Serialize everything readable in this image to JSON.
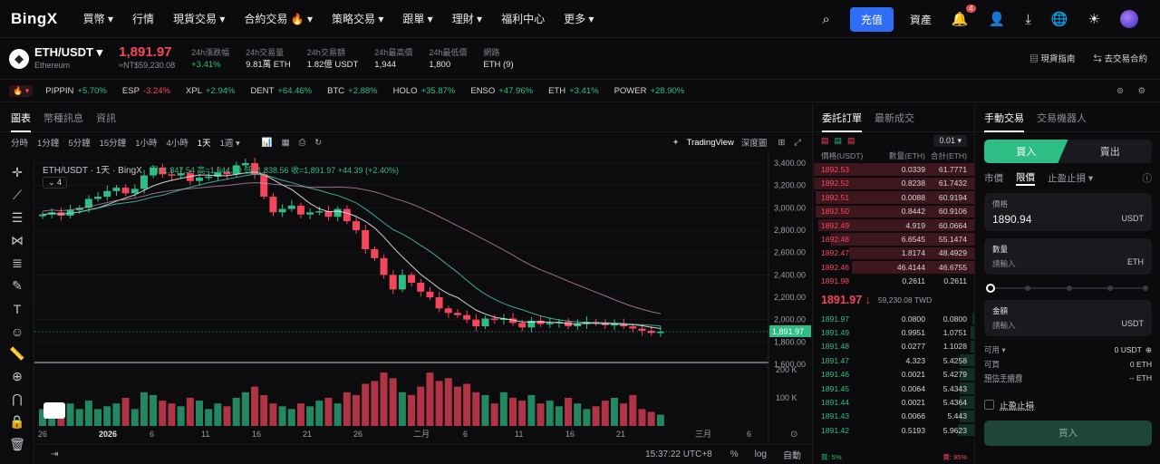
{
  "nav": {
    "logo": "BingX",
    "items": [
      "買幣 ▾",
      "行情",
      "現貨交易 ▾",
      "合約交易 🔥 ▾",
      "策略交易 ▾",
      "跟單 ▾",
      "理財 ▾",
      "福利中心",
      "更多 ▾"
    ],
    "deposit": "充值",
    "assets": "資產",
    "notif_count": "4"
  },
  "ticker": {
    "pair": "ETH/USDT ▾",
    "name": "Ethereum",
    "price": "1,891.97",
    "price_sub": "≈NT$59,230.08",
    "stats": [
      {
        "k": "24h漲跌幅",
        "v": "+3.41%",
        "up": true
      },
      {
        "k": "24h交易量",
        "v": "9.81萬 ETH"
      },
      {
        "k": "24h交易額",
        "v": "1.82億 USDT"
      },
      {
        "k": "24h最高價",
        "v": "1,944"
      },
      {
        "k": "24h最低價",
        "v": "1,800"
      },
      {
        "k": "網路",
        "v": "ETH (9)"
      }
    ],
    "guide": "現貨指南",
    "to_futures": "去交易合約"
  },
  "markets": [
    {
      "s": "PIPPIN",
      "c": "+5.70%",
      "up": true
    },
    {
      "s": "ESP",
      "c": "-3.24%",
      "up": false
    },
    {
      "s": "XPL",
      "c": "+2.94%",
      "up": true
    },
    {
      "s": "DENT",
      "c": "+64.46%",
      "up": true
    },
    {
      "s": "BTC",
      "c": "+2.88%",
      "up": true
    },
    {
      "s": "HOLO",
      "c": "+35.87%",
      "up": true
    },
    {
      "s": "ENSO",
      "c": "+47.96%",
      "up": true
    },
    {
      "s": "ETH",
      "c": "+3.41%",
      "up": true
    },
    {
      "s": "POWER",
      "c": "+28.90%",
      "up": true
    }
  ],
  "chart_tabs": [
    "圖表",
    "幣種訊息",
    "資訊"
  ],
  "intervals": [
    "分時",
    "1分鐘",
    "5分鐘",
    "15分鐘",
    "1小時",
    "4小時",
    "1天",
    "1週 ▾"
  ],
  "tv": {
    "label": "TradingView",
    "depth": "深度圖"
  },
  "legend": {
    "title": "ETH/USDT · 1天 · BingX",
    "ohlc": "開=1,847.54 高=1,944.00 低=1,838.56 收=1,891.97 +44.39 (+2.40%)",
    "ind": "4"
  },
  "price_axis": [
    "3,400.00",
    "3,200.00",
    "3,000.00",
    "2,800.00",
    "2,600.00",
    "2,400.00",
    "2,200.00",
    "2,000.00",
    "1,800.00",
    "1,600.00"
  ],
  "price_tag": "1,891.97",
  "vol_axis": [
    "200 K",
    "100 K"
  ],
  "time_axis": [
    "26",
    "2026",
    "6",
    "11",
    "16",
    "21",
    "26",
    "二月",
    "6",
    "11",
    "16",
    "21",
    "三月",
    "6"
  ],
  "bottom": {
    "clock": "15:37:22 UTC+8",
    "pct": "%",
    "log": "log",
    "auto": "自動"
  },
  "chart_data": {
    "type": "candlestick",
    "x_start_label": "26",
    "price_range": [
      1600,
      3400
    ],
    "candles_approx_close": [
      2940,
      2960,
      2930,
      2980,
      3000,
      3080,
      3100,
      3150,
      3180,
      3130,
      3170,
      3290,
      3360,
      3300,
      3290,
      3310,
      3240,
      3270,
      3280,
      3320,
      3300,
      3380,
      3400,
      3300,
      3100,
      2960,
      2990,
      3020,
      2940,
      2960,
      2970,
      2920,
      2990,
      2880,
      2800,
      2630,
      2550,
      2400,
      2270,
      2400,
      2330,
      2250,
      2200,
      2100,
      2060,
      2040,
      2000,
      1940,
      2010,
      2000,
      2010,
      1970,
      1930,
      1990,
      1960,
      1970,
      1980,
      1940,
      1960,
      1980,
      1970,
      1950,
      1960,
      1940,
      1920,
      1900,
      1880,
      1892
    ],
    "volume_rel": [
      0.3,
      0.35,
      0.25,
      0.4,
      0.3,
      0.45,
      0.3,
      0.35,
      0.4,
      0.5,
      0.3,
      0.6,
      0.55,
      0.45,
      0.4,
      0.35,
      0.5,
      0.45,
      0.3,
      0.4,
      0.35,
      0.5,
      0.6,
      0.7,
      0.55,
      0.4,
      0.35,
      0.3,
      0.4,
      0.35,
      0.45,
      0.5,
      0.4,
      0.6,
      0.55,
      0.75,
      0.8,
      0.95,
      0.85,
      0.6,
      0.55,
      0.7,
      0.95,
      0.8,
      0.85,
      0.7,
      0.75,
      0.6,
      0.55,
      0.4,
      0.6,
      0.5,
      0.45,
      0.55,
      0.4,
      0.45,
      0.35,
      0.5,
      0.4,
      0.3,
      0.35,
      0.45,
      0.5,
      0.4,
      0.55,
      0.3,
      0.25,
      0.2
    ]
  },
  "orderbook": {
    "tabs": [
      "委託訂單",
      "最新成交"
    ],
    "precision": "0.01 ▾",
    "head": [
      "價格(USDT)",
      "數量(ETH)",
      "合計(ETH)"
    ],
    "asks": [
      [
        "1892.53",
        "0.0339",
        "61.7771"
      ],
      [
        "1892.52",
        "0.8238",
        "61.7432"
      ],
      [
        "1892.51",
        "0.0088",
        "60.9194"
      ],
      [
        "1892.50",
        "0.8442",
        "60.9106"
      ],
      [
        "1892.49",
        "4.919",
        "60.0664"
      ],
      [
        "1892.48",
        "6.6545",
        "55.1474"
      ],
      [
        "1892.47",
        "1.8174",
        "48.4929"
      ],
      [
        "1892.46",
        "46.4144",
        "46.6755"
      ],
      [
        "1891.98",
        "0.2611",
        "0.2611"
      ]
    ],
    "ask_depth": [
      1,
      1,
      0.99,
      0.99,
      0.97,
      0.89,
      0.78,
      0.76,
      0
    ],
    "last": "1891.97 ↓",
    "last_twd": "59,230.08 TWD",
    "bids": [
      [
        "1891.97",
        "0.0800",
        "0.0800"
      ],
      [
        "1891.49",
        "0.9951",
        "1.0751"
      ],
      [
        "1891.48",
        "0.0277",
        "1.1028"
      ],
      [
        "1891.47",
        "4.323",
        "5.4258"
      ],
      [
        "1891.46",
        "0.0021",
        "5.4279"
      ],
      [
        "1891.45",
        "0.0064",
        "5.4343"
      ],
      [
        "1891.44",
        "0.0021",
        "5.4364"
      ],
      [
        "1891.43",
        "0.0066",
        "5.443"
      ],
      [
        "1891.42",
        "0.5193",
        "5.9623"
      ]
    ],
    "bid_depth": [
      0.01,
      0.02,
      0.02,
      0.09,
      0.09,
      0.09,
      0.09,
      0.09,
      0.1
    ],
    "buy_ratio": "5%",
    "sell_ratio": "95%"
  },
  "trade": {
    "tabs": [
      "手動交易",
      "交易機器人"
    ],
    "buy": "買入",
    "sell": "賣出",
    "types": [
      "市價",
      "限價",
      "止盈止損 ▾"
    ],
    "price_label": "價格",
    "price_value": "1890.94",
    "price_unit": "USDT",
    "qty_label": "數量",
    "qty_ph": "請輸入",
    "qty_unit": "ETH",
    "amt_label": "金額",
    "amt_ph": "請輸入",
    "amt_unit": "USDT",
    "avail_label": "可用 ▾",
    "avail": "0 USDT",
    "can_buy_label": "可買",
    "can_buy": "0 ETH",
    "fee_label": "預估手續費",
    "fee": "-- ETH",
    "tpsl": "止盈止損",
    "submit": "買入"
  },
  "colors": {
    "up": "#2ebd85",
    "down": "#f6465d",
    "accent": "#2f6df6"
  }
}
